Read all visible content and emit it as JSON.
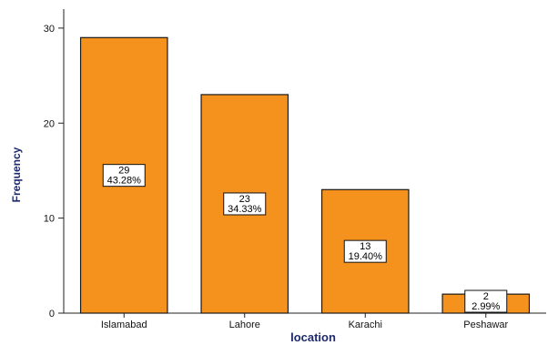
{
  "chart_data": {
    "type": "bar",
    "categories": [
      "Islamabad",
      "Lahore",
      "Karachi",
      "Peshawar"
    ],
    "values": [
      29,
      23,
      13,
      2
    ],
    "percent_labels": [
      "43.28%",
      "34.33%",
      "19.40%",
      "2.99%"
    ],
    "count_labels": [
      "29",
      "23",
      "13",
      "2"
    ],
    "xlabel": "location",
    "ylabel": "Frequency",
    "ylim": [
      0,
      32
    ],
    "yticks": [
      0,
      10,
      20,
      30
    ],
    "grid": false,
    "legend": "none",
    "colors": {
      "bar_fill": "#f5921e",
      "bar_stroke": "#1a1a1a",
      "axis_title": "#1f2a6b",
      "axis_line": "#222222"
    }
  }
}
